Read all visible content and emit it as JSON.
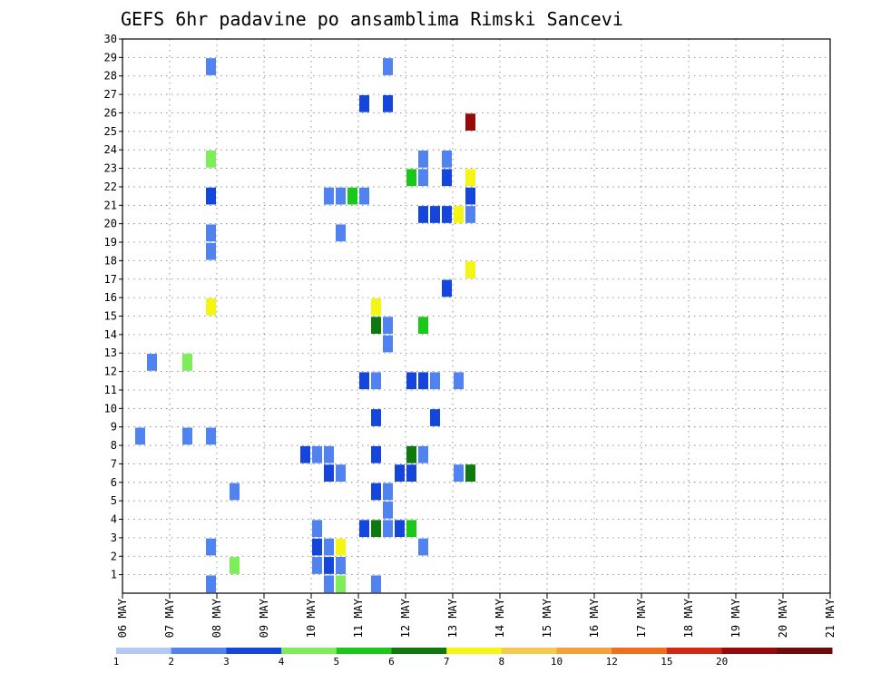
{
  "chart_data": {
    "type": "heatmap",
    "title": "GEFS 6hr padavine po ansamblima Rimski Sancevi",
    "xlabel": "",
    "ylabel": "",
    "x_tick_labels": [
      "06 MAY",
      "07 MAY",
      "08 MAY",
      "09 MAY",
      "10 MAY",
      "11 MAY",
      "12 MAY",
      "13 MAY",
      "14 MAY",
      "15 MAY",
      "16 MAY",
      "17 MAY",
      "18 MAY",
      "19 MAY",
      "20 MAY",
      "21 MAY"
    ],
    "y_tick_labels": [
      "1",
      "2",
      "3",
      "4",
      "5",
      "6",
      "7",
      "8",
      "9",
      "10",
      "11",
      "12",
      "13",
      "14",
      "15",
      "16",
      "17",
      "18",
      "19",
      "20",
      "21",
      "22",
      "23",
      "24",
      "25",
      "26",
      "27",
      "28",
      "29",
      "30"
    ],
    "xlim_steps": [
      0,
      60
    ],
    "ylim": [
      0,
      30
    ],
    "grid": true,
    "legend": "colorbar-bottom",
    "colorbar": {
      "labels": [
        "1",
        "2",
        "3",
        "4",
        "5",
        "6",
        "7",
        "8",
        "10",
        "12",
        "15",
        "20"
      ],
      "colors": [
        "#b4c8f5",
        "#5082f0",
        "#1446dc",
        "#7ded5a",
        "#19c819",
        "#0f780f",
        "#f5f514",
        "#f5c850",
        "#f5a03c",
        "#f06e1e",
        "#d22814",
        "#960a0a",
        "#6e0a0a"
      ]
    },
    "cells": [
      [
        16,
        30,
        1
      ],
      [
        19,
        30,
        1
      ],
      [
        7,
        28,
        1
      ],
      [
        22,
        28,
        1
      ],
      [
        20,
        26,
        2
      ],
      [
        22,
        26,
        2
      ],
      [
        29,
        25,
        11
      ],
      [
        7,
        23,
        3
      ],
      [
        25,
        23,
        1
      ],
      [
        27,
        23,
        1
      ],
      [
        24,
        22,
        4
      ],
      [
        25,
        22,
        1
      ],
      [
        27,
        22,
        2
      ],
      [
        29,
        22,
        6
      ],
      [
        7,
        21,
        2
      ],
      [
        17,
        21,
        1
      ],
      [
        18,
        21,
        1
      ],
      [
        19,
        21,
        4
      ],
      [
        20,
        21,
        1
      ],
      [
        29,
        21,
        2
      ],
      [
        25,
        20,
        2
      ],
      [
        26,
        20,
        2
      ],
      [
        27,
        20,
        2
      ],
      [
        28,
        20,
        6
      ],
      [
        29,
        20,
        1
      ],
      [
        7,
        19,
        1
      ],
      [
        18,
        19,
        1
      ],
      [
        7,
        18,
        1
      ],
      [
        29,
        17,
        6
      ],
      [
        27,
        16,
        2
      ],
      [
        7,
        15,
        6
      ],
      [
        21,
        15,
        6
      ],
      [
        21,
        14,
        5
      ],
      [
        22,
        14,
        1
      ],
      [
        25,
        14,
        4
      ],
      [
        22,
        13,
        1
      ],
      [
        2,
        12,
        1
      ],
      [
        5,
        12,
        3
      ],
      [
        20,
        11,
        2
      ],
      [
        21,
        11,
        1
      ],
      [
        24,
        11,
        2
      ],
      [
        25,
        11,
        2
      ],
      [
        26,
        11,
        1
      ],
      [
        28,
        11,
        1
      ],
      [
        21,
        9,
        2
      ],
      [
        26,
        9,
        2
      ],
      [
        1,
        8,
        1
      ],
      [
        5,
        8,
        1
      ],
      [
        7,
        8,
        1
      ],
      [
        15,
        7,
        2
      ],
      [
        16,
        7,
        1
      ],
      [
        17,
        7,
        1
      ],
      [
        21,
        7,
        2
      ],
      [
        24,
        7,
        1
      ],
      [
        24,
        7,
        5
      ],
      [
        25,
        7,
        1
      ],
      [
        17,
        6,
        2
      ],
      [
        18,
        6,
        1
      ],
      [
        23,
        6,
        2
      ],
      [
        24,
        6,
        2
      ],
      [
        28,
        6,
        1
      ],
      [
        29,
        6,
        4
      ],
      [
        29,
        6,
        5
      ],
      [
        9,
        5,
        1
      ],
      [
        21,
        5,
        2
      ],
      [
        22,
        5,
        1
      ],
      [
        22,
        4,
        1
      ],
      [
        16,
        3,
        1
      ],
      [
        20,
        3,
        2
      ],
      [
        21,
        3,
        5
      ],
      [
        22,
        3,
        1
      ],
      [
        23,
        3,
        2
      ],
      [
        24,
        3,
        4
      ],
      [
        7,
        2,
        1
      ],
      [
        16,
        2,
        2
      ],
      [
        17,
        2,
        1
      ],
      [
        18,
        2,
        6
      ],
      [
        25,
        2,
        1
      ],
      [
        9,
        1,
        3
      ],
      [
        16,
        1,
        1
      ],
      [
        17,
        1,
        2
      ],
      [
        18,
        1,
        2
      ],
      [
        18,
        1,
        1
      ],
      [
        7,
        0,
        1
      ],
      [
        17,
        0,
        1
      ],
      [
        18,
        0,
        3
      ],
      [
        21,
        0,
        1
      ]
    ]
  }
}
